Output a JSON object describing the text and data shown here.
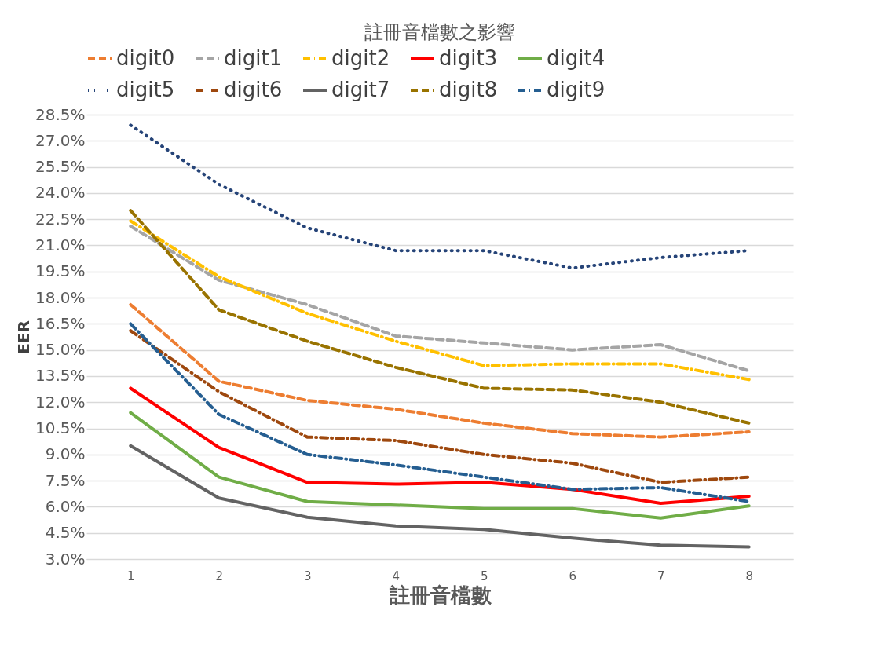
{
  "chart_data": {
    "type": "line",
    "title": "註冊音檔數之影響",
    "xlabel": "註冊音檔數",
    "ylabel": "EER",
    "categories": [
      "1",
      "2",
      "3",
      "4",
      "5",
      "6",
      "7",
      "8"
    ],
    "ylim": [
      3.0,
      28.5
    ],
    "yticks": [
      {
        "value": 3.0,
        "label": "3.0%"
      },
      {
        "value": 4.5,
        "label": "4.5%"
      },
      {
        "value": 6.0,
        "label": "6.0%"
      },
      {
        "value": 7.5,
        "label": "7.5%"
      },
      {
        "value": 9.0,
        "label": "9.0%"
      },
      {
        "value": 10.5,
        "label": "10.5%"
      },
      {
        "value": 12.0,
        "label": "12.0%"
      },
      {
        "value": 13.5,
        "label": "13.5%"
      },
      {
        "value": 15.0,
        "label": "15.0%"
      },
      {
        "value": 16.5,
        "label": "16.5%"
      },
      {
        "value": 18.0,
        "label": "18.0%"
      },
      {
        "value": 19.5,
        "label": "19.5%"
      },
      {
        "value": 21.0,
        "label": "21.0%"
      },
      {
        "value": 22.5,
        "label": "22.5%"
      },
      {
        "value": 24.0,
        "label": "24.0%"
      },
      {
        "value": 25.5,
        "label": "25.5%"
      },
      {
        "value": 27.0,
        "label": "27.0%"
      },
      {
        "value": 28.5,
        "label": "28.5%"
      }
    ],
    "grid": "y",
    "legend": "top",
    "marker": "none",
    "series": [
      {
        "name": "digit0",
        "color": "#ed7d31",
        "line_style": "dashed",
        "values": [
          17.6,
          13.2,
          12.1,
          11.6,
          10.8,
          10.2,
          10.0,
          10.3
        ]
      },
      {
        "name": "digit1",
        "color": "#a5a5a5",
        "line_style": "dashed",
        "values": [
          22.1,
          19.0,
          17.6,
          15.8,
          15.4,
          15.0,
          15.3,
          13.8
        ]
      },
      {
        "name": "digit2",
        "color": "#ffc000",
        "line_style": "dashdot",
        "values": [
          22.4,
          19.2,
          17.1,
          15.5,
          14.1,
          14.2,
          14.2,
          13.3
        ]
      },
      {
        "name": "digit3",
        "color": "#ff0000",
        "line_style": "solid",
        "values": [
          12.8,
          9.4,
          7.4,
          7.3,
          7.4,
          7.0,
          6.2,
          6.6
        ]
      },
      {
        "name": "digit4",
        "color": "#70ad47",
        "line_style": "solid",
        "values": [
          11.4,
          7.7,
          6.3,
          6.1,
          5.9,
          5.9,
          5.35,
          6.05
        ]
      },
      {
        "name": "digit5",
        "color": "#264478",
        "line_style": "dotted",
        "values": [
          27.9,
          24.5,
          22.0,
          20.7,
          20.7,
          19.7,
          20.3,
          20.7
        ]
      },
      {
        "name": "digit6",
        "color": "#9e480e",
        "line_style": "dashdot",
        "values": [
          16.1,
          12.6,
          10.0,
          9.8,
          9.0,
          8.5,
          7.4,
          7.7
        ]
      },
      {
        "name": "digit7",
        "color": "#636363",
        "line_style": "solid",
        "values": [
          9.5,
          6.5,
          5.4,
          4.9,
          4.7,
          4.2,
          3.8,
          3.7
        ]
      },
      {
        "name": "digit8",
        "color": "#997300",
        "line_style": "dashed",
        "values": [
          23.0,
          17.3,
          15.5,
          14.0,
          12.8,
          12.7,
          12.0,
          10.8
        ]
      },
      {
        "name": "digit9",
        "color": "#255e91",
        "line_style": "dashdot",
        "values": [
          16.5,
          11.3,
          9.0,
          8.4,
          7.7,
          7.0,
          7.1,
          6.3
        ]
      }
    ]
  }
}
